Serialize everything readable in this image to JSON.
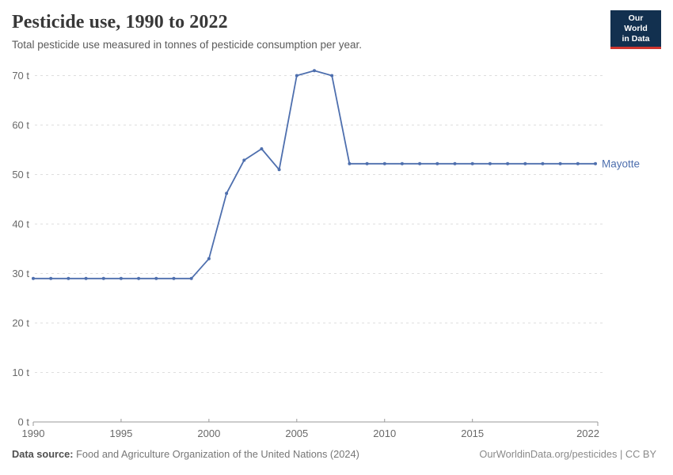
{
  "header": {
    "title": "Pesticide use, 1990 to 2022",
    "subtitle": "Total pesticide use measured in tonnes of pesticide consumption per year."
  },
  "logo": {
    "line1": "Our World",
    "line2": "in Data",
    "bg_color": "#12304f",
    "accent_color": "#cf352e"
  },
  "chart_data": {
    "type": "line",
    "title": "Pesticide use, 1990 to 2022",
    "unit": "t",
    "x": [
      1990,
      1991,
      1992,
      1993,
      1994,
      1995,
      1996,
      1997,
      1998,
      1999,
      2000,
      2001,
      2002,
      2003,
      2004,
      2005,
      2006,
      2007,
      2008,
      2009,
      2010,
      2011,
      2012,
      2013,
      2014,
      2015,
      2016,
      2017,
      2018,
      2019,
      2020,
      2021,
      2022
    ],
    "series": [
      {
        "name": "Mayotte",
        "color": "#4e6fae",
        "values": [
          29,
          29,
          29,
          29,
          29,
          29,
          29,
          29,
          29,
          29,
          33,
          46.2,
          52.9,
          55.2,
          51,
          70,
          71,
          70,
          52.2,
          52.2,
          52.2,
          52.2,
          52.2,
          52.2,
          52.2,
          52.2,
          52.2,
          52.2,
          52.2,
          52.2,
          52.2,
          52.2,
          52.2
        ]
      }
    ],
    "xlim": [
      1990,
      2022
    ],
    "ylim": [
      0,
      70
    ],
    "yticks": [
      0,
      10,
      20,
      30,
      40,
      50,
      60,
      70
    ],
    "ytick_labels": [
      "0 t",
      "10 t",
      "20 t",
      "30 t",
      "40 t",
      "50 t",
      "60 t",
      "70 t"
    ],
    "xticks": [
      1990,
      1995,
      2000,
      2005,
      2010,
      2015,
      2022
    ],
    "xtick_labels": [
      "1990",
      "1995",
      "2000",
      "2005",
      "2010",
      "2015",
      "2022"
    ],
    "grid": "horizontal-dashed",
    "legend": "line-end-label",
    "grid_color": "#dedede",
    "axis_color": "#9a9a9a",
    "tick_label_color": "#696969"
  },
  "footer": {
    "datasource_label": "Data source:",
    "datasource_value": "Food and Agriculture Organization of the United Nations (2024)",
    "license": "OurWorldinData.org/pesticides | CC BY"
  }
}
